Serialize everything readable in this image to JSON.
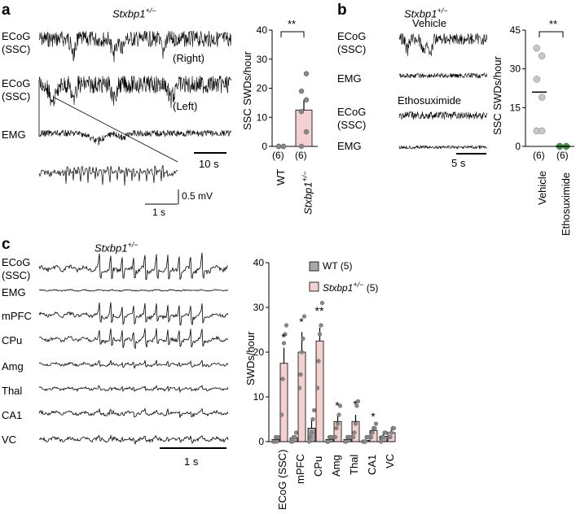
{
  "panel_a": {
    "letter": "a",
    "genotype_base": "Stxbp1",
    "genotype_sup": "+/−",
    "traces": [
      {
        "label_line1": "ECoG",
        "label_line2": "(SSC)",
        "side": "(Right)"
      },
      {
        "label_line1": "ECoG",
        "label_line2": "(SSC)",
        "side": "(Left)"
      },
      {
        "label_line1": "EMG",
        "label_line2": "",
        "side": ""
      }
    ],
    "scalebar_time": "10 s",
    "inset_scale_voltage": "0.5 mV",
    "inset_scale_time": "1 s",
    "chart_data": {
      "type": "bar",
      "ylabel": "SSC SWDs/hour",
      "ylim": [
        0,
        40
      ],
      "yticks": [
        0,
        10,
        20,
        30,
        40
      ],
      "categories": [
        "WT",
        "Stxbp1"
      ],
      "category_sup": [
        "",
        "+/−"
      ],
      "n_labels": [
        "(6)",
        "(6)"
      ],
      "values": [
        0,
        12.5
      ],
      "sem": [
        0,
        3.5
      ],
      "points": [
        [
          0,
          0,
          0,
          0,
          0,
          0
        ],
        [
          0,
          5,
          12,
          16,
          19,
          25
        ]
      ],
      "significance": "**",
      "bar_colors": [
        "#a9a9a9",
        "#f4d0d0"
      ]
    }
  },
  "panel_b": {
    "letter": "b",
    "genotype_base": "Stxbp1",
    "genotype_sup": "+/−",
    "conditions": [
      "Vehicle",
      "Ethosuximide"
    ],
    "traces": [
      {
        "label_line1": "ECoG",
        "label_line2": "(SSC)"
      },
      {
        "label_line1": "EMG",
        "label_line2": ""
      },
      {
        "label_line1": "ECoG",
        "label_line2": "(SSC)"
      },
      {
        "label_line1": "EMG",
        "label_line2": ""
      }
    ],
    "scalebar_time": "5 s",
    "chart_data": {
      "type": "scatter",
      "ylabel": "SSC SWDs/hour",
      "ylim": [
        0,
        45
      ],
      "yticks": [
        0,
        15,
        30,
        45
      ],
      "categories": [
        "Vehicle",
        "Ethosuximide"
      ],
      "n_labels": [
        "(6)",
        "(6)"
      ],
      "points": [
        [
          38,
          35,
          26,
          19,
          6,
          6
        ],
        [
          0,
          0,
          0,
          0,
          0,
          0
        ]
      ],
      "means": [
        21,
        0
      ],
      "significance": "**",
      "point_colors": [
        "#c8c8c8",
        "#3a9a3a"
      ]
    }
  },
  "panel_c": {
    "letter": "c",
    "genotype_base": "Stxbp1",
    "genotype_sup": "+/−",
    "traces": [
      {
        "label_line1": "ECoG",
        "label_line2": "(SSC)"
      },
      {
        "label_line1": "EMG",
        "label_line2": ""
      },
      {
        "label_line1": "mPFC",
        "label_line2": ""
      },
      {
        "label_line1": "CPu",
        "label_line2": ""
      },
      {
        "label_line1": "Amg",
        "label_line2": ""
      },
      {
        "label_line1": "Thal",
        "label_line2": ""
      },
      {
        "label_line1": "CA1",
        "label_line2": ""
      },
      {
        "label_line1": "VC",
        "label_line2": ""
      }
    ],
    "scalebar_time": "1 s",
    "chart_data": {
      "type": "bar",
      "ylabel": "SWDs/hour",
      "ylim": [
        0,
        40
      ],
      "yticks": [
        0,
        10,
        20,
        30,
        40
      ],
      "categories": [
        "ECoG (SSC)",
        "mPFC",
        "CPu",
        "Amg",
        "Thal",
        "CA1",
        "VC"
      ],
      "legend": [
        {
          "name": "WT",
          "suffix": "(5)",
          "italic": false,
          "sup": ""
        },
        {
          "name": "Stxbp1",
          "suffix": "(5)",
          "italic": true,
          "sup": "+/−"
        }
      ],
      "legend_position": "top-right",
      "series": [
        {
          "name": "WT",
          "values": [
            0.5,
            0.8,
            3,
            0.5,
            0.5,
            0.3,
            1.2
          ],
          "sem": [
            0.3,
            0.4,
            2,
            0.3,
            0.3,
            0.2,
            0.5
          ],
          "points": [
            [
              0,
              0,
              1,
              0,
              1
            ],
            [
              0,
              0,
              1,
              1,
              2
            ],
            [
              0,
              1,
              2,
              5,
              7
            ],
            [
              0,
              0,
              1,
              1,
              1
            ],
            [
              0,
              0,
              1,
              1,
              1
            ],
            [
              0,
              0,
              0,
              1,
              1
            ],
            [
              0,
              1,
              1,
              2,
              2
            ]
          ]
        },
        {
          "name": "Stxbp1+/−",
          "values": [
            17.5,
            20,
            22.5,
            4.5,
            4.5,
            2.5,
            2
          ],
          "sem": [
            3.5,
            4.5,
            3,
            1.2,
            1.5,
            0.8,
            0.7
          ],
          "points": [
            [
              6,
              14,
              22,
              24,
              26
            ],
            [
              12,
              15,
              20,
              23,
              28
            ],
            [
              12,
              18,
              24,
              26,
              31
            ],
            [
              1,
              3,
              4,
              6,
              8
            ],
            [
              1,
              2,
              4,
              8,
              9
            ],
            [
              1,
              2,
              3,
              3,
              4
            ],
            [
              1,
              1,
              2,
              3,
              3
            ]
          ]
        }
      ],
      "significance": [
        "*",
        "*",
        "**",
        "*",
        "*",
        "*",
        ""
      ],
      "bar_colors": [
        "#a9a9a9",
        "#f4d0d0"
      ]
    }
  }
}
